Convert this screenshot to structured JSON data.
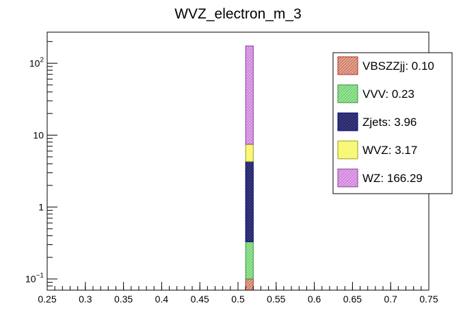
{
  "chart_data": {
    "type": "bar",
    "stacked": true,
    "title": "WVZ_electron_m_3",
    "xlabel": "",
    "ylabel": "",
    "xlim": [
      0.25,
      0.75
    ],
    "ylim": [
      0.07,
      270
    ],
    "yscale": "log",
    "grid": false,
    "legend_position": "top-right",
    "x_ticks": [
      0.25,
      0.3,
      0.35,
      0.4,
      0.45,
      0.5,
      0.55,
      0.6,
      0.65,
      0.7,
      0.75
    ],
    "x_tick_labels": [
      "0.25",
      "0.3",
      "0.35",
      "0.4",
      "0.45",
      "0.5",
      "0.55",
      "0.6",
      "0.65",
      "0.7",
      "0.75"
    ],
    "y_ticks": [
      {
        "value": 0.1,
        "base": "10",
        "exp": "−1"
      },
      {
        "value": 1,
        "label": "1"
      },
      {
        "value": 10,
        "label": "10"
      },
      {
        "value": 100,
        "base": "10",
        "exp": "2"
      }
    ],
    "bin": {
      "low": 0.51,
      "high": 0.52
    },
    "series": [
      {
        "name": "VBSZZjj",
        "value": 0.1,
        "fill": "#e8a58e",
        "stroke": "#b0302a",
        "hatch": "#8a3a30"
      },
      {
        "name": "VVV",
        "value": 0.23,
        "fill": "#96e896",
        "stroke": "#3c8c3c",
        "hatch": "#3e9e3e"
      },
      {
        "name": "Zjets",
        "value": 3.96,
        "fill": "#3a3a8c",
        "stroke": "#00007a",
        "hatch": "#000000"
      },
      {
        "name": "WVZ",
        "value": 3.17,
        "fill": "#ffff80",
        "stroke": "#9a9a20",
        "hatch": "#d8d850"
      },
      {
        "name": "WZ",
        "value": 166.29,
        "fill": "#e2a6ec",
        "stroke": "#8c3a9c",
        "hatch": "#a04cb0"
      }
    ],
    "legend": [
      {
        "label": "VBSZZjj: 0.10"
      },
      {
        "label": "VVV: 0.23"
      },
      {
        "label": "Zjets: 3.96"
      },
      {
        "label": "WVZ: 3.17"
      },
      {
        "label": "WZ: 166.29"
      }
    ]
  }
}
